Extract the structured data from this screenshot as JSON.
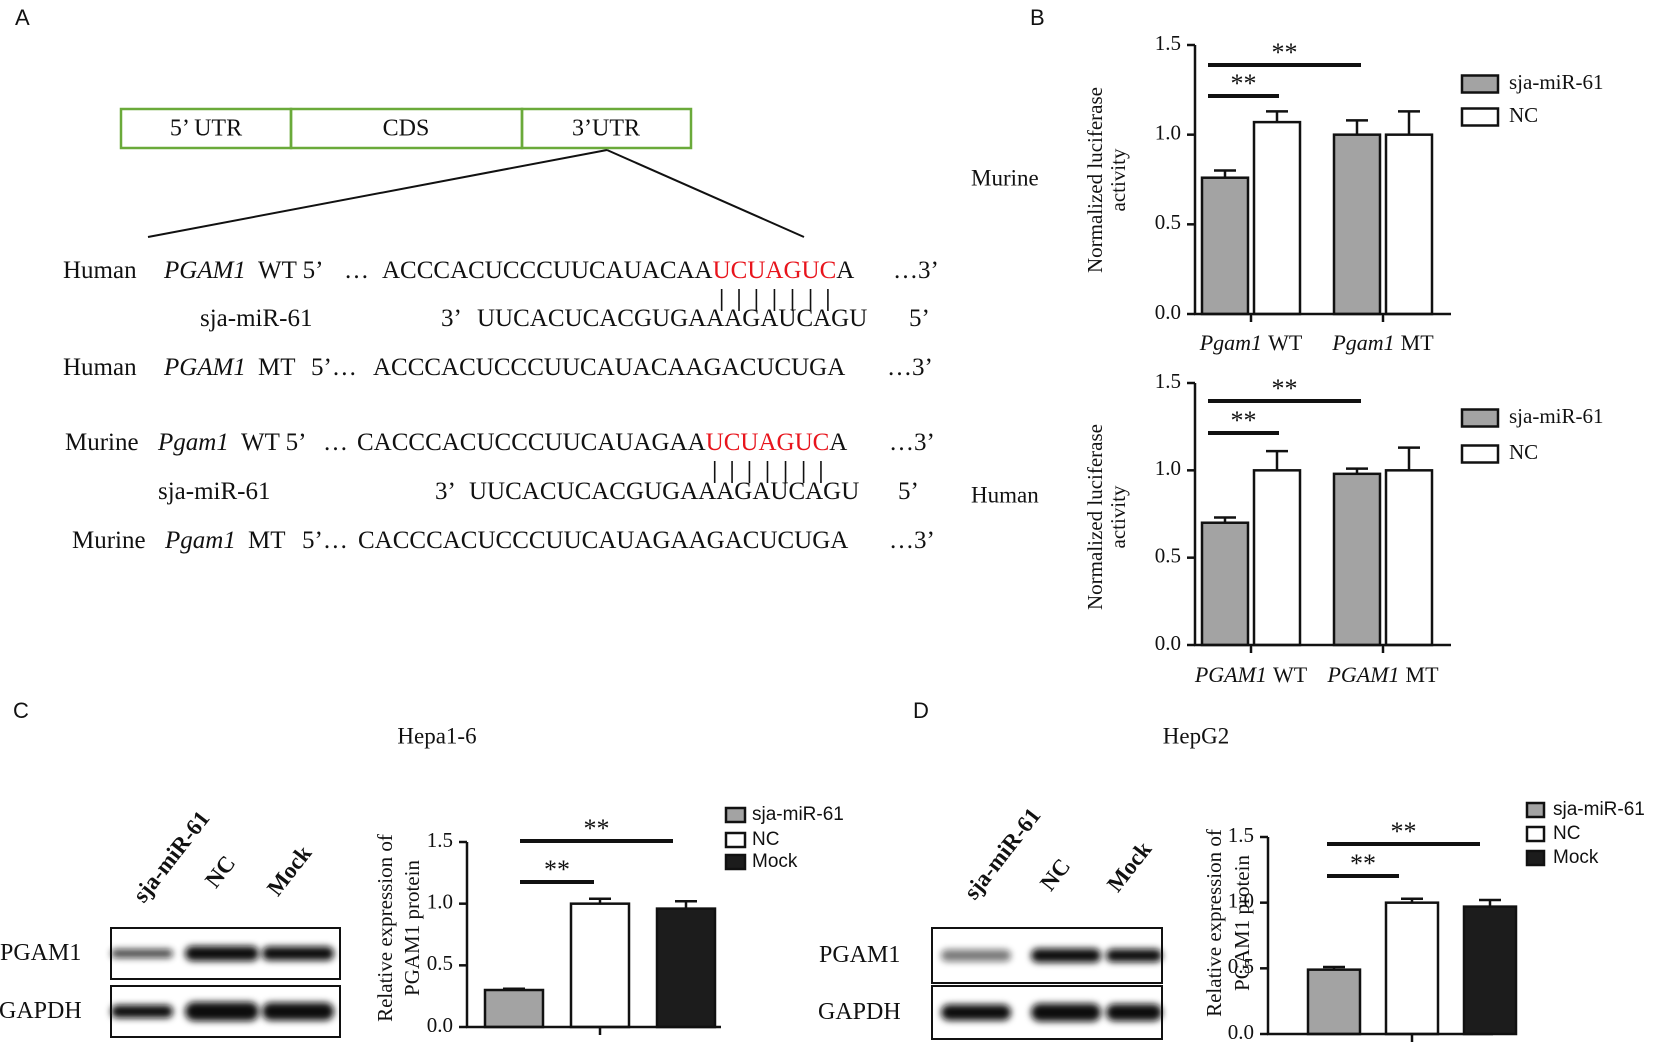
{
  "panel_labels": [
    "A",
    "B",
    "C",
    "D"
  ],
  "gene_structure": [
    "5’ UTR",
    "CDS",
    "3’UTR"
  ],
  "sequences": [
    {
      "segments": [
        {
          "text": "Human"
        },
        {
          "text": "PGAM1",
          "italic": true
        },
        {
          "text": "WT 5’"
        },
        {
          "text": "…"
        },
        {
          "text": "ACCCACUCCCUUCAUACAA"
        },
        {
          "text": "UCUAGUC",
          "color": "#e8141c"
        },
        {
          "text": "A"
        },
        {
          "text": "…3’"
        }
      ]
    },
    {
      "segments": [
        {
          "text": "sja-miR-61"
        },
        {
          "text": "3’"
        },
        {
          "text": "UUCACUCACGUGAAAGAUCAGU"
        },
        {
          "text": "5’"
        }
      ]
    },
    {
      "segments": [
        {
          "text": "Human"
        },
        {
          "text": "PGAM1",
          "italic": true
        },
        {
          "text": "MT"
        },
        {
          "text": "5’…"
        },
        {
          "text": "ACCCACUCCCUUCAUACAAGACUCUGA"
        },
        {
          "text": "…3’"
        }
      ]
    },
    {
      "segments": [
        {
          "text": "Murine"
        },
        {
          "text": "Pgam1",
          "italic": true
        },
        {
          "text": "WT 5’"
        },
        {
          "text": "…"
        },
        {
          "text": "CACCCACUCCCUUCAUAGAA"
        },
        {
          "text": "UCUAGUC",
          "color": "#e8141c"
        },
        {
          "text": "A"
        },
        {
          "text": "…3’"
        }
      ]
    },
    {
      "segments": [
        {
          "text": "sja-miR-61"
        },
        {
          "text": "3’"
        },
        {
          "text": "UUCACUCACGUGAAAGAUCAGU"
        },
        {
          "text": "5’"
        }
      ]
    },
    {
      "segments": [
        {
          "text": "Murine"
        },
        {
          "text": "Pgam1",
          "italic": true
        },
        {
          "text": "MT"
        },
        {
          "text": "5’…"
        },
        {
          "text": "CACCCACUCCCUUCAUAGAAGACUCUGA"
        },
        {
          "text": "…3’"
        }
      ]
    }
  ],
  "blots": [
    {
      "lanes": [
        "sja-miR-61",
        "NC",
        "Mock"
      ],
      "bands": [
        "PGAM1",
        "GAPDH"
      ]
    },
    {
      "lanes": [
        "sja-miR-61",
        "NC",
        "Mock"
      ],
      "bands": [
        "PGAM1",
        "GAPDH"
      ]
    }
  ],
  "chart_data": [
    {
      "type": "bar",
      "title": "Murine",
      "ylabel": [
        "Normalized luciferase",
        "activity"
      ],
      "categories": [
        [
          "Pgam1",
          "WT"
        ],
        [
          "Pgam1",
          "MT"
        ]
      ],
      "series": [
        {
          "name": "sja-miR-61",
          "color": "#a3a3a3",
          "values": [
            0.76,
            1.0
          ],
          "errors": [
            0.04,
            0.08
          ]
        },
        {
          "name": "NC",
          "color": "#ffffff",
          "values": [
            1.07,
            1.0
          ],
          "errors": [
            0.06,
            0.13
          ]
        }
      ],
      "ylim": [
        0,
        1.5
      ],
      "yticks": [
        {
          "value": 0,
          "label": "0.0"
        },
        0.5,
        {
          "value": 1,
          "label": "1.0"
        },
        1.5
      ],
      "annotations": [
        "**",
        "**"
      ],
      "legend": "right"
    },
    {
      "type": "bar",
      "title": "Human",
      "ylabel": [
        "Normalized luciferase",
        "activity"
      ],
      "categories": [
        [
          "PGAM1",
          "WT"
        ],
        [
          "PGAM1",
          "MT"
        ]
      ],
      "series": [
        {
          "name": "sja-miR-61",
          "color": "#a3a3a3",
          "values": [
            0.7,
            0.98
          ],
          "errors": [
            0.03,
            0.03
          ]
        },
        {
          "name": "NC",
          "color": "#ffffff",
          "values": [
            1.0,
            1.0
          ],
          "errors": [
            0.11,
            0.13
          ]
        }
      ],
      "ylim": [
        0,
        1.5
      ],
      "yticks": [
        {
          "value": 0,
          "label": "0.0"
        },
        0.5,
        {
          "value": 1,
          "label": "1.0"
        },
        1.5
      ],
      "annotations": [
        "**",
        "**"
      ],
      "legend": "right"
    },
    {
      "type": "bar",
      "title": "Hepa1-6",
      "ylabel": [
        "Relative expression of",
        "PGAM1 protein"
      ],
      "categories": [
        null
      ],
      "series": [
        {
          "name": "sja-miR-61",
          "color": "#a3a3a3",
          "values": [
            0.3
          ],
          "errors": [
            0.01
          ]
        },
        {
          "name": "NC",
          "color": "#ffffff",
          "values": [
            1.0
          ],
          "errors": [
            0.04
          ]
        },
        {
          "name": "Mock",
          "color": "#1c1c1c",
          "values": [
            0.96
          ],
          "errors": [
            0.06
          ]
        }
      ],
      "ylim": [
        0,
        1.5
      ],
      "yticks": [
        {
          "value": 0,
          "label": "0.0"
        },
        0.5,
        {
          "value": 1,
          "label": "1.0"
        },
        1.5
      ],
      "annotations": [
        "**",
        "**"
      ],
      "legend": "right"
    },
    {
      "type": "bar",
      "title": "HepG2",
      "ylabel": [
        "Relative expression of",
        "PGAM1 protein"
      ],
      "categories": [
        null
      ],
      "series": [
        {
          "name": "sja-miR-61",
          "color": "#a3a3a3",
          "values": [
            0.49
          ],
          "errors": [
            0.02
          ]
        },
        {
          "name": "NC",
          "color": "#ffffff",
          "values": [
            1.0
          ],
          "errors": [
            0.03
          ]
        },
        {
          "name": "Mock",
          "color": "#1c1c1c",
          "values": [
            0.97
          ],
          "errors": [
            0.05
          ]
        }
      ],
      "ylim": [
        0,
        1.5
      ],
      "yticks": [
        {
          "value": 0,
          "label": "0.0"
        },
        0.5,
        {
          "value": 1,
          "label": "1.0"
        },
        1.5
      ],
      "annotations": [
        "**",
        "**"
      ],
      "legend": "right"
    }
  ]
}
